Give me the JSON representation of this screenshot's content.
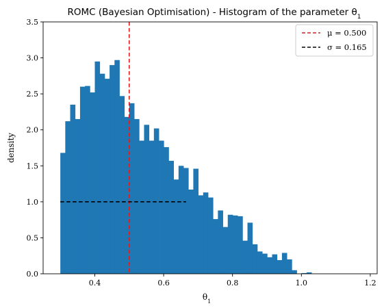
{
  "chart_data": {
    "type": "bar",
    "title": "ROMC (Bayesian Optimisation) - Histogram of the parameter θ",
    "title_subscript": "1",
    "xlabel": "θ",
    "xlabel_subscript": "1",
    "ylabel": "density",
    "xlim": [
      0.25,
      1.22
    ],
    "ylim": [
      0,
      3.5
    ],
    "xticks": [
      0.4,
      0.6,
      0.8,
      1.0,
      1.2
    ],
    "xtick_labels": [
      "0.4",
      "0.6",
      "0.8",
      "1.0",
      "1.2"
    ],
    "yticks": [
      0.0,
      0.5,
      1.0,
      1.5,
      2.0,
      2.5,
      3.0,
      3.5
    ],
    "ytick_labels": [
      "0.0",
      "0.5",
      "1.0",
      "1.5",
      "2.0",
      "2.5",
      "3.0",
      "3.5"
    ],
    "bin_width": 0.0143,
    "bin_start": 0.3,
    "bar_color": "#1f77b4",
    "values": [
      1.68,
      2.12,
      2.35,
      2.15,
      2.6,
      2.61,
      2.52,
      2.95,
      2.78,
      2.71,
      2.9,
      2.97,
      2.47,
      2.18,
      2.37,
      2.15,
      1.85,
      2.07,
      1.85,
      2.02,
      1.85,
      1.76,
      1.57,
      1.31,
      1.5,
      1.47,
      1.17,
      1.46,
      1.09,
      1.13,
      1.06,
      0.76,
      0.88,
      0.65,
      0.82,
      0.81,
      0.8,
      0.46,
      0.71,
      0.41,
      0.31,
      0.28,
      0.23,
      0.27,
      0.19,
      0.29,
      0.2,
      0.05,
      0.0,
      0.01,
      0.02
    ],
    "reference_lines": [
      {
        "name": "μ = 0.500",
        "orientation": "vertical",
        "x": 0.5,
        "color": "#e41a1c",
        "style": "dashed"
      },
      {
        "name": "σ = 0.165",
        "orientation": "horizontal",
        "y": 1.0,
        "x_start": 0.3,
        "x_end": 0.665,
        "color": "#000000",
        "style": "dashed"
      }
    ],
    "legend": {
      "placement": "top-right",
      "entries": [
        "μ = 0.500",
        "σ = 0.165"
      ]
    },
    "grid": false
  }
}
